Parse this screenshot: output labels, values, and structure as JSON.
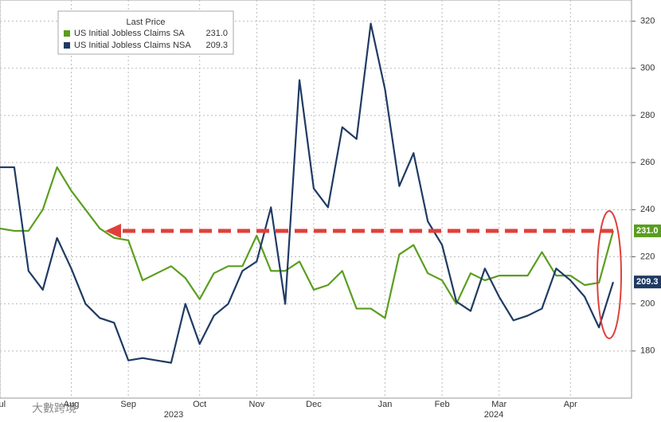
{
  "chart_data": {
    "type": "line",
    "legend_title": "Last Price",
    "categories": [
      "Jul",
      null,
      null,
      null,
      null,
      "Aug",
      null,
      null,
      null,
      "Sep",
      null,
      null,
      null,
      null,
      "Oct",
      null,
      null,
      null,
      "Nov",
      null,
      null,
      null,
      "Dec",
      null,
      null,
      null,
      null,
      "Jan",
      null,
      null,
      null,
      "Feb",
      null,
      null,
      null,
      "Mar",
      null,
      null,
      null,
      null,
      "Apr",
      null,
      null,
      null
    ],
    "year_labels": [
      "2023",
      "2024"
    ],
    "series": [
      {
        "name": "US Initial Jobless Claims SA",
        "color": "#5a9e1e",
        "last_value_label": "231.0",
        "values": [
          232,
          231,
          231,
          240,
          258,
          248,
          240,
          232,
          228,
          227,
          210,
          213,
          216,
          211,
          202,
          213,
          216,
          216,
          229,
          214,
          214,
          218,
          206,
          208,
          214,
          198,
          198,
          194,
          221,
          225,
          213,
          210,
          200,
          213,
          210,
          212,
          212,
          212,
          222,
          212,
          212,
          208,
          209,
          231.0
        ]
      },
      {
        "name": "US Initial Jobless Claims NSA",
        "color": "#1f3b63",
        "last_value_label": "209.3",
        "values": [
          258,
          258,
          214,
          206,
          228,
          215,
          200,
          194,
          192,
          176,
          177,
          176,
          175,
          200,
          183,
          195,
          200,
          214,
          218,
          241,
          200,
          295,
          249,
          241,
          275,
          270,
          319,
          291,
          250,
          264,
          235,
          225,
          201,
          197,
          215,
          203,
          193,
          195,
          198,
          215,
          210,
          203,
          190,
          209.3
        ]
      }
    ],
    "ylim": [
      160,
      329
    ],
    "yticks": [
      180,
      200,
      220,
      240,
      260,
      280,
      300,
      320
    ],
    "grid": true,
    "watermark": "大數跨境"
  }
}
